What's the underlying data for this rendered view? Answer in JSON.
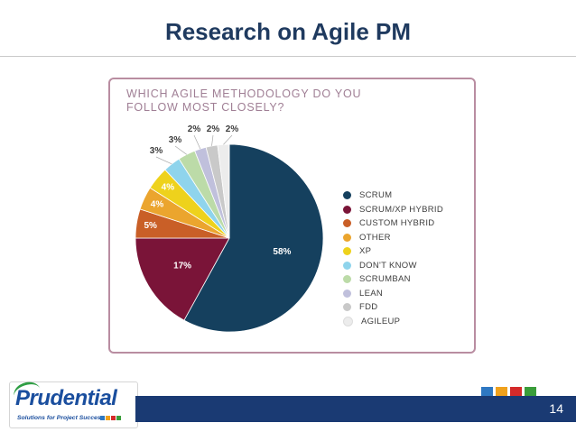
{
  "slide": {
    "title": "Research on Agile PM",
    "page_number": "14"
  },
  "logo": {
    "name": "Prudential",
    "tagline": "Solutions for Project Success"
  },
  "colors": {
    "title": "#1f3a5f",
    "footer_bar": "#1a3a73",
    "accent_squares": [
      "#2e78c2",
      "#f0a11c",
      "#d42a2a",
      "#3a9d3a"
    ]
  },
  "chart_data": {
    "type": "pie",
    "title": "WHICH AGILE METHODOLOGY DO YOU FOLLOW MOST CLOSELY?",
    "unit": "%",
    "legend_position": "right",
    "slices": [
      {
        "label": "SCRUM",
        "value": 58,
        "color": "#15405e"
      },
      {
        "label": "SCRUM/XP HYBRID",
        "value": 17,
        "color": "#7a1438"
      },
      {
        "label": "CUSTOM HYBRID",
        "value": 5,
        "color": "#c95f27"
      },
      {
        "label": "OTHER",
        "value": 4,
        "color": "#eba52e"
      },
      {
        "label": "XP",
        "value": 4,
        "color": "#eed21c"
      },
      {
        "label": "DON'T KNOW",
        "value": 3,
        "color": "#8fd4ec"
      },
      {
        "label": "SCRUMBAN",
        "value": 3,
        "color": "#bcdba8"
      },
      {
        "label": "LEAN",
        "value": 2,
        "color": "#c0c0dc"
      },
      {
        "label": "FDD",
        "value": 2,
        "color": "#c9c9c9"
      },
      {
        "label": "AGILEUP",
        "value": 2,
        "color": "#ececec"
      }
    ]
  }
}
